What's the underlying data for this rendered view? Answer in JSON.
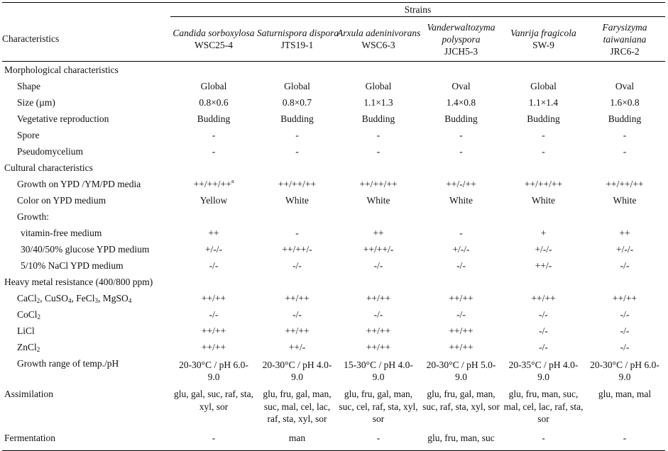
{
  "header": {
    "characteristics": "Characteristics",
    "strains_label": "Strains"
  },
  "strains": [
    {
      "species": "Candida sorboxylosa",
      "code": "WSC25-4"
    },
    {
      "species": "Saturnispora dispora",
      "code": "JTS19-1"
    },
    {
      "species": "Arxula adeninivorans",
      "code": "WSC6-3"
    },
    {
      "species": "Vanderwaltozyma polyspora",
      "code": "JJCH5-3"
    },
    {
      "species": "Vanrija fragicola",
      "code": "SW-9"
    },
    {
      "species": "Farysizyma taiwaniana",
      "code": "JRC6-2"
    }
  ],
  "sections": {
    "morphological": "Morphological characteristics",
    "cultural": "Cultural characteristics",
    "heavy_metal": "Heavy metal resistance (400/800 ppm)"
  },
  "rows": {
    "shape": {
      "label": "Shape",
      "values": [
        "Global",
        "Global",
        "Global",
        "Oval",
        "Global",
        "Oval"
      ]
    },
    "size": {
      "label": "Size (µm)",
      "values": [
        "0.8×0.6",
        "0.8×0.7",
        "1.1×1.3",
        "1.4×0.8",
        "1.1×1.4",
        "1.6×0.8"
      ]
    },
    "vegetative": {
      "label": "Vegetative reproduction",
      "values": [
        "Budding",
        "Budding",
        "Budding",
        "Budding",
        "Budding",
        "Budding"
      ]
    },
    "spore": {
      "label": "Spore",
      "values": [
        "-",
        "-",
        "-",
        "-",
        "-",
        "-"
      ]
    },
    "pseudomycelium": {
      "label": "Pseudomycelium",
      "values": [
        "-",
        "-",
        "-",
        "-",
        "-",
        "-"
      ]
    },
    "growth_media": {
      "label": "Growth on YPD /YM/PD media",
      "values": [
        "++/++/++",
        "++/++/++",
        "++/++/++",
        "++/-/++",
        "++/++/++",
        "++/++/++"
      ],
      "footnote_mark": "a"
    },
    "color": {
      "label": "Color on YPD medium",
      "values": [
        "Yellow",
        "White",
        "White",
        "White",
        "White",
        "White"
      ]
    },
    "growth_heading": {
      "label": "Growth:"
    },
    "vitamin_free": {
      "label": "vitamin-free medium",
      "values": [
        "++",
        "-",
        "++",
        "-",
        "+",
        "++"
      ]
    },
    "glucose": {
      "label": "30/40/50% glucose YPD medium",
      "values": [
        "+/-/-",
        "++/++/-",
        "++/++/-",
        "+/-/-",
        "+/-/-",
        "+/-/-"
      ]
    },
    "nacl": {
      "label": "5/10% NaCl YPD medium",
      "values": [
        "-/-",
        "-/-",
        "-/-",
        "-/-",
        "++/-",
        "-/-"
      ]
    },
    "salts": {
      "label_parts": [
        "CaCl",
        "2",
        ", CuSO",
        "4",
        ", FeCl",
        "3",
        ", MgSO",
        "4"
      ],
      "values": [
        "++/++",
        "++/++",
        "++/++",
        "++/++",
        "++/++",
        "++/++"
      ]
    },
    "cocl2": {
      "label_parts": [
        "CoCl",
        "2"
      ],
      "values": [
        "-/-",
        "-/-",
        "-/-",
        "-/-",
        "-/-",
        "-/-"
      ]
    },
    "licl": {
      "label": "LiCl",
      "values": [
        "++/++",
        "++/++",
        "++/++",
        "++/++",
        "-/-",
        "-/-"
      ]
    },
    "zncl2": {
      "label_parts": [
        "ZnCl",
        "2"
      ],
      "values": [
        "++/++",
        "++/-",
        "++/++",
        "++/++",
        "-/-",
        "-/-"
      ]
    },
    "temp_ph": {
      "label": "Growth range of temp./pH",
      "values": [
        [
          "20-30°C / pH 6.0-",
          "9.0"
        ],
        [
          "20-30°C / pH 4.0-",
          "9.0"
        ],
        [
          "15-30°C / pH 4.0-",
          "9.0"
        ],
        [
          "20-30°C / pH 5.0-",
          "9.0"
        ],
        [
          "20-35°C / pH 4.0-",
          "9.0"
        ],
        [
          "20-30°C / pH 6.0-",
          "9.0"
        ]
      ]
    },
    "assimilation": {
      "label": "Assimilation",
      "values": [
        [
          "glu, gal, suc, raf, sta,",
          "xyl, sor"
        ],
        [
          "glu, fru, gal, man,",
          "suc, mal, cel, lac,",
          "raf, sta, xyl, sor"
        ],
        [
          "glu, fru, gal, man,",
          "suc, cel, raf, sta, xyl,",
          "sor"
        ],
        [
          "glu, fru, gal, man,",
          "suc, raf, sta, xyl, sor"
        ],
        [
          "glu, fru, man, suc,",
          "mal, cel, lac, raf, sta,",
          "sor"
        ],
        [
          "glu, man, mal"
        ]
      ]
    },
    "fermentation": {
      "label": "Fermentation",
      "values": [
        "-",
        "man",
        "-",
        "glu, fru, man, suc",
        "-",
        "-"
      ]
    }
  }
}
